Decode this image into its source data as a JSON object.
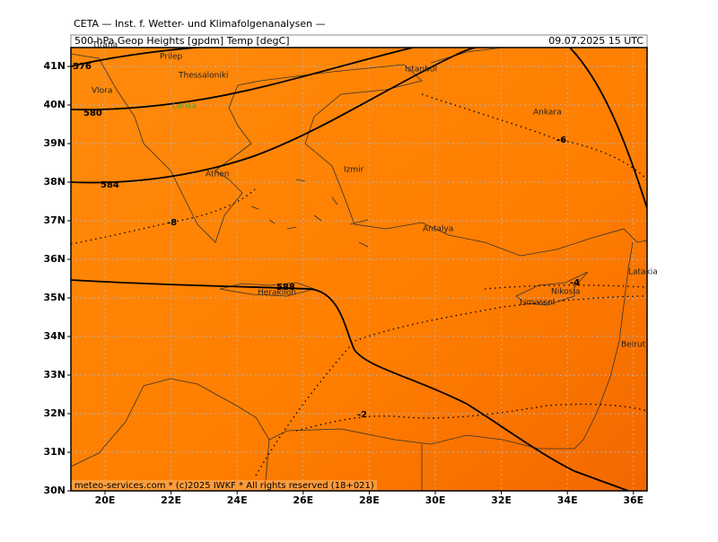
{
  "header": {
    "title": "CETA — Inst. f. Wetter- und Klimafolgenanalysen —",
    "product": "500 hPa Geop Heights [gpdm] Temp [degC]",
    "valid_time": "09.07.2025 15 UTC"
  },
  "map": {
    "lat_ticks": [
      {
        "value": 41,
        "label": "41N"
      },
      {
        "value": 40,
        "label": "40N"
      },
      {
        "value": 39,
        "label": "39N"
      },
      {
        "value": 38,
        "label": "38N"
      },
      {
        "value": 37,
        "label": "37N"
      },
      {
        "value": 36,
        "label": "36N"
      },
      {
        "value": 35,
        "label": "35N"
      },
      {
        "value": 34,
        "label": "34N"
      },
      {
        "value": 33,
        "label": "33N"
      },
      {
        "value": 32,
        "label": "32N"
      },
      {
        "value": 31,
        "label": "31N"
      },
      {
        "value": 30,
        "label": "30N"
      }
    ],
    "lon_ticks": [
      {
        "value": 20,
        "label": "20E"
      },
      {
        "value": 22,
        "label": "22E"
      },
      {
        "value": 24,
        "label": "24E"
      },
      {
        "value": 26,
        "label": "26E"
      },
      {
        "value": 28,
        "label": "28E"
      },
      {
        "value": 30,
        "label": "30E"
      },
      {
        "value": 32,
        "label": "32E"
      },
      {
        "value": 34,
        "label": "34E"
      },
      {
        "value": 36,
        "label": "36E"
      }
    ],
    "cities": [
      "Tirana",
      "Prilep",
      "Thessaloniki",
      "Vlora",
      "Larisa",
      "Athen",
      "Izmir",
      "Istanbul",
      "Ankara",
      "Antalya",
      "Heraklion",
      "Limassol",
      "Nikosia",
      "Latakia",
      "Beirut"
    ],
    "height_labels": [
      "576",
      "580",
      "584",
      "588"
    ],
    "temp_labels": [
      "-8",
      "-6",
      "-4",
      "-2"
    ]
  },
  "footer": "meteo-services.com * (c)2025 IWKF * All rights reserved (18+021)"
}
